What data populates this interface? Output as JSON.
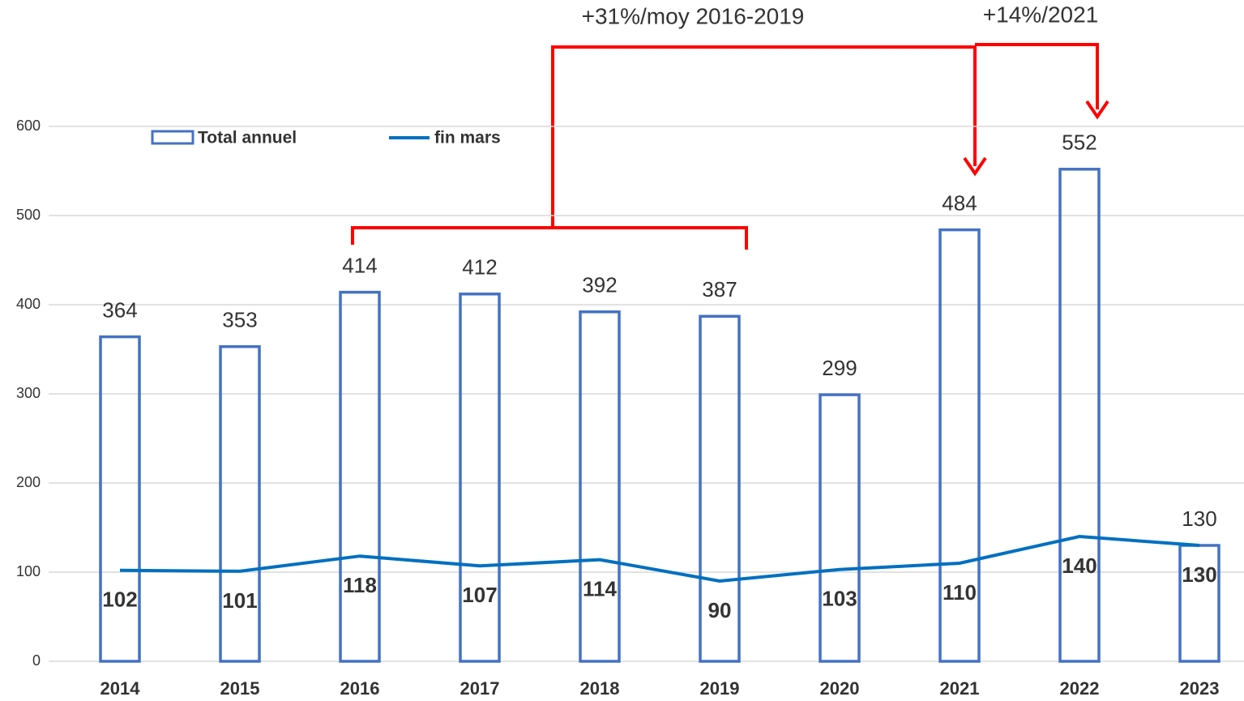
{
  "chart_data": {
    "type": "bar",
    "annotations": [
      "+31%/moy 2016-2019",
      "+14%/2021"
    ],
    "categories": [
      "2014",
      "2015",
      "2016",
      "2017",
      "2018",
      "2019",
      "2020",
      "2021",
      "2022",
      "2023"
    ],
    "series": [
      {
        "name": "Total annuel",
        "type": "bar",
        "color": "#4472c4",
        "values": [
          364,
          353,
          414,
          412,
          392,
          387,
          299,
          484,
          552,
          130
        ]
      },
      {
        "name": "fin mars",
        "type": "line",
        "color": "#0070c0",
        "values": [
          102,
          101,
          118,
          107,
          114,
          90,
          103,
          110,
          140,
          130
        ]
      }
    ],
    "ylim": [
      0,
      700
    ],
    "yticks": [
      0,
      100,
      200,
      300,
      400,
      500,
      600
    ],
    "grid": true
  }
}
